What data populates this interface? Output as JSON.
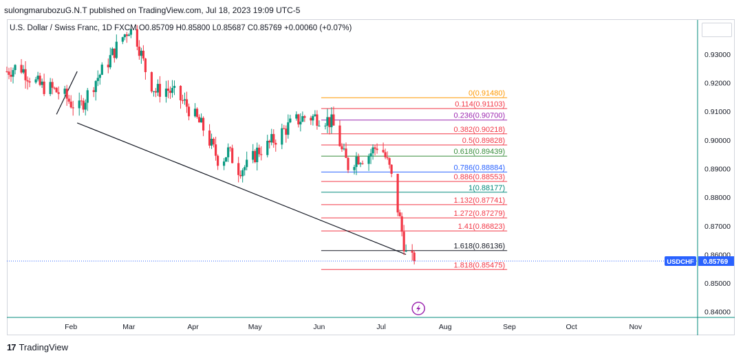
{
  "header": {
    "published": "sulongmarubozuG.N.T published on TradingView.com, Jul 18, 2023 19:09 UTC-5"
  },
  "symbol_line": "U.S. Dollar / Swiss Franc, 1D  FXCM  O0.85709  H0.85800  L0.85687  C0.85769  +0.00060 (+0.07%)",
  "price_tag": {
    "symbol": "USDCHF",
    "price": "0.85769"
  },
  "footer": {
    "brand": "TradingView"
  },
  "colors": {
    "up": "#089981",
    "down": "#f23645",
    "fib_orange": "#ff9800",
    "fib_purple": "#9c27b0",
    "fib_green": "#388e3c",
    "fib_blue": "#2962ff",
    "fib_teal": "#00897b",
    "fib_black": "#131722",
    "tag_blue": "#2962ff",
    "events_purple": "#9c27b0"
  },
  "chart_data": {
    "type": "candlestick",
    "title": "U.S. Dollar / Swiss Franc, 1D",
    "ylim": [
      0.838,
      0.942
    ],
    "y_ticks": [
      "0.93000",
      "0.92000",
      "0.91000",
      "0.90000",
      "0.89000",
      "0.88000",
      "0.87000",
      "0.86000",
      "0.85000",
      "0.84000"
    ],
    "y_tick_values": [
      0.93,
      0.92,
      0.91,
      0.9,
      0.89,
      0.88,
      0.87,
      0.86,
      0.85,
      0.84
    ],
    "x_labels": [
      "Feb",
      "Mar",
      "Apr",
      "May",
      "Jun",
      "Jul",
      "Aug",
      "Sep",
      "Oct",
      "Nov"
    ],
    "x_label_days": [
      32,
      60,
      91,
      121,
      152,
      182,
      213,
      244,
      274,
      305
    ],
    "x_range_days": [
      1,
      335
    ],
    "last_day": 198,
    "close_guide": [
      [
        1,
        0.924
      ],
      [
        7,
        0.926
      ],
      [
        12,
        0.922
      ],
      [
        17,
        0.919
      ],
      [
        22,
        0.918
      ],
      [
        28,
        0.916
      ],
      [
        32,
        0.913
      ],
      [
        36,
        0.911
      ],
      [
        40,
        0.916
      ],
      [
        44,
        0.921
      ],
      [
        48,
        0.925
      ],
      [
        52,
        0.93
      ],
      [
        57,
        0.936
      ],
      [
        60,
        0.939
      ],
      [
        64,
        0.935
      ],
      [
        69,
        0.922
      ],
      [
        73,
        0.917
      ],
      [
        78,
        0.918
      ],
      [
        84,
        0.915
      ],
      [
        88,
        0.912
      ],
      [
        93,
        0.907
      ],
      [
        97,
        0.903
      ],
      [
        100,
        0.898
      ],
      [
        104,
        0.892
      ],
      [
        108,
        0.896
      ],
      [
        113,
        0.89
      ],
      [
        118,
        0.891
      ],
      [
        122,
        0.896
      ],
      [
        127,
        0.898
      ],
      [
        133,
        0.902
      ],
      [
        139,
        0.906
      ],
      [
        145,
        0.908
      ],
      [
        149,
        0.908
      ],
      [
        154,
        0.908
      ],
      [
        158,
        0.906
      ],
      [
        161,
        0.902
      ],
      [
        163,
        0.896
      ],
      [
        166,
        0.891
      ],
      [
        170,
        0.894
      ],
      [
        175,
        0.894
      ],
      [
        180,
        0.898
      ],
      [
        183,
        0.896
      ],
      [
        186,
        0.89
      ],
      [
        189,
        0.88
      ],
      [
        192,
        0.868
      ],
      [
        194,
        0.86
      ],
      [
        196,
        0.858
      ],
      [
        198,
        0.8577
      ]
    ],
    "fibonacci": [
      {
        "label": "0(0.91480)",
        "value": 0.9148,
        "color": "#ff9800"
      },
      {
        "label": "0.114(0.91103)",
        "value": 0.91103,
        "color": "#f23645"
      },
      {
        "label": "0.236(0.90700)",
        "value": 0.907,
        "color": "#9c27b0"
      },
      {
        "label": "0.382(0.90218)",
        "value": 0.90218,
        "color": "#f23645"
      },
      {
        "label": "0.5(0.89828)",
        "value": 0.89828,
        "color": "#f23645"
      },
      {
        "label": "0.618(0.89439)",
        "value": 0.89439,
        "color": "#388e3c"
      },
      {
        "label": "0.786(0.88884)",
        "value": 0.88884,
        "color": "#2962ff"
      },
      {
        "label": "0.886(0.88553)",
        "value": 0.88553,
        "color": "#f23645"
      },
      {
        "label": "1(0.88177)",
        "value": 0.88177,
        "color": "#00897b"
      },
      {
        "label": "1.132(0.87741)",
        "value": 0.87741,
        "color": "#f23645"
      },
      {
        "label": "1.272(0.87279)",
        "value": 0.87279,
        "color": "#f23645"
      },
      {
        "label": "1.41(0.86823)",
        "value": 0.86823,
        "color": "#f23645"
      },
      {
        "label": "1.618(0.86136)",
        "value": 0.86136,
        "color": "#131722"
      },
      {
        "label": "1.818(0.85475)",
        "value": 0.85475,
        "color": "#f23645"
      }
    ],
    "fib_day_range": [
      153,
      198
    ],
    "trendlines": [
      {
        "p1": [
          25,
          0.909
        ],
        "p2": [
          35,
          0.924
        ]
      },
      {
        "p1": [
          35,
          0.906
        ],
        "p2": [
          194,
          0.86
        ]
      }
    ],
    "last_price": 0.85769
  }
}
